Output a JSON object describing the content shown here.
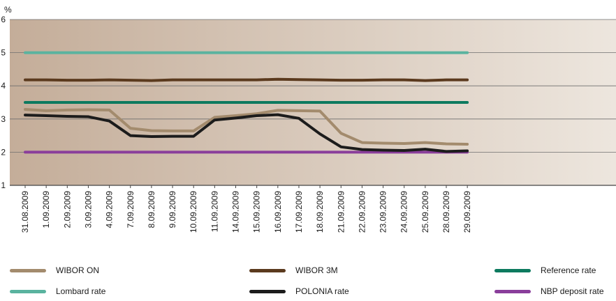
{
  "chart_data": {
    "type": "line",
    "ylabel": "%",
    "ylim": [
      1,
      6
    ],
    "yticks": [
      1,
      2,
      3,
      4,
      5,
      6
    ],
    "grid": true,
    "legend_position": "bottom",
    "categories": [
      "31.08.2009",
      "1.09.2009",
      "2.09.2009",
      "3.09.2009",
      "4.09.2009",
      "7.09.2009",
      "8.09.2009",
      "9.09.2009",
      "10.09.2009",
      "11.09.2009",
      "14.09.2009",
      "15.09.2009",
      "16.09.2009",
      "17.09.2009",
      "18.09.2009",
      "21.09.2009",
      "22.09.2009",
      "23.09.2009",
      "24.09.2009",
      "25.09.2009",
      "28.09.2009",
      "29.09.2009"
    ],
    "series": [
      {
        "name": "WIBOR ON",
        "color": "#a38b6d",
        "values": [
          3.29,
          3.25,
          3.27,
          3.28,
          3.27,
          2.72,
          2.65,
          2.64,
          2.64,
          3.05,
          3.1,
          3.16,
          3.26,
          3.25,
          3.24,
          2.57,
          2.29,
          2.27,
          2.26,
          2.29,
          2.25,
          2.24
        ]
      },
      {
        "name": "WIBOR 3M",
        "color": "#5b3a1e",
        "values": [
          4.18,
          4.18,
          4.17,
          4.17,
          4.18,
          4.17,
          4.16,
          4.18,
          4.18,
          4.18,
          4.18,
          4.18,
          4.2,
          4.19,
          4.18,
          4.17,
          4.17,
          4.18,
          4.18,
          4.16,
          4.18,
          4.18
        ]
      },
      {
        "name": "Reference rate",
        "color": "#0d7a5f",
        "values": [
          3.5,
          3.5,
          3.5,
          3.5,
          3.5,
          3.5,
          3.5,
          3.5,
          3.5,
          3.5,
          3.5,
          3.5,
          3.5,
          3.5,
          3.5,
          3.5,
          3.5,
          3.5,
          3.5,
          3.5,
          3.5,
          3.5
        ]
      },
      {
        "name": "Lombard rate",
        "color": "#5ab39f",
        "values": [
          5.0,
          5.0,
          5.0,
          5.0,
          5.0,
          5.0,
          5.0,
          5.0,
          5.0,
          5.0,
          5.0,
          5.0,
          5.0,
          5.0,
          5.0,
          5.0,
          5.0,
          5.0,
          5.0,
          5.0,
          5.0,
          5.0
        ]
      },
      {
        "name": "POLONIA rate",
        "color": "#1c1c1c",
        "values": [
          3.12,
          3.1,
          3.08,
          3.07,
          2.94,
          2.5,
          2.47,
          2.48,
          2.48,
          2.97,
          3.03,
          3.1,
          3.13,
          3.02,
          2.55,
          2.16,
          2.08,
          2.06,
          2.05,
          2.09,
          2.02,
          2.04
        ]
      },
      {
        "name": "NBP deposit rate",
        "color": "#8a3e9b",
        "values": [
          2.0,
          2.0,
          2.0,
          2.0,
          2.0,
          2.0,
          2.0,
          2.0,
          2.0,
          2.0,
          2.0,
          2.0,
          2.0,
          2.0,
          2.0,
          2.0,
          2.0,
          2.0,
          2.0,
          2.0,
          2.0,
          2.0
        ]
      }
    ]
  },
  "legend": [
    {
      "label": "WIBOR ON",
      "color": "#a38b6d"
    },
    {
      "label": "WIBOR 3M",
      "color": "#5b3a1e"
    },
    {
      "label": "Reference rate",
      "color": "#0d7a5f"
    },
    {
      "label": "Lombard rate",
      "color": "#5ab39f"
    },
    {
      "label": "POLONIA rate",
      "color": "#1c1c1c"
    },
    {
      "label": "NBP deposit rate",
      "color": "#8a3e9b"
    }
  ],
  "background": {
    "start_color": "#c4ad99",
    "end_color": "#ede6de"
  }
}
